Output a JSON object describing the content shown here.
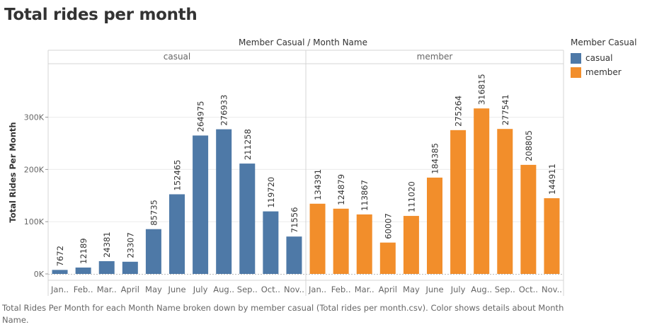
{
  "title": "Total rides per month",
  "header_label": "Member Casual  /  Month Name",
  "legend": {
    "title": "Member Casual",
    "items": [
      {
        "label": "casual",
        "color": "#4e79a7"
      },
      {
        "label": "member",
        "color": "#f28e2b"
      }
    ]
  },
  "footer": "Total Rides Per Month for each Month Name broken down by member casual (Total rides per month.csv). Color shows details about Month Name.",
  "chart_data": {
    "type": "bar",
    "ylabel": "Total Rides Per Month",
    "ylim": [
      0,
      350000
    ],
    "yticks": [
      0,
      100000,
      200000,
      300000
    ],
    "ytick_labels": [
      "0K",
      "100K",
      "200K",
      "300K"
    ],
    "grid": true,
    "panels": [
      {
        "name": "casual",
        "color": "#4e79a7",
        "categories": [
          "Jan..",
          "Feb..",
          "Mar..",
          "April",
          "May",
          "June",
          "July",
          "Aug..",
          "Sep..",
          "Oct..",
          "Nov.."
        ],
        "values": [
          7672,
          12189,
          24381,
          23307,
          85735,
          152465,
          264975,
          276933,
          211258,
          119720,
          71556
        ]
      },
      {
        "name": "member",
        "color": "#f28e2b",
        "categories": [
          "Jan..",
          "Feb..",
          "Mar..",
          "April",
          "May",
          "June",
          "July",
          "Aug..",
          "Sep..",
          "Oct..",
          "Nov.."
        ],
        "values": [
          134391,
          124879,
          113867,
          60007,
          111020,
          184385,
          275264,
          316815,
          277541,
          208805,
          144911
        ]
      }
    ]
  }
}
